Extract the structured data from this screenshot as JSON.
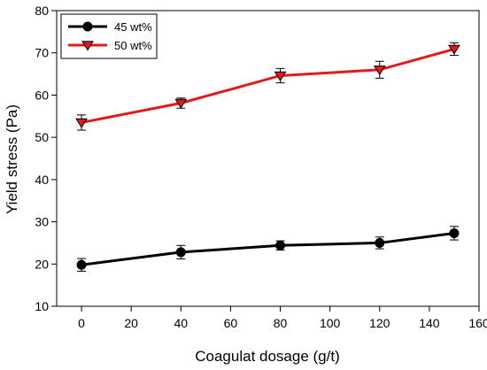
{
  "chart_data": {
    "type": "line",
    "title": "",
    "xlabel": "Coagulat dosage (g/t)",
    "ylabel": "Yield stress (Pa)",
    "xlim": [
      -10,
      160
    ],
    "ylim": [
      10,
      80
    ],
    "xticks": [
      0,
      20,
      40,
      60,
      80,
      100,
      120,
      140,
      160
    ],
    "yticks": [
      10,
      20,
      30,
      40,
      50,
      60,
      70,
      80
    ],
    "grid": false,
    "legend_position": "top-left",
    "series": [
      {
        "name": "45 wt%",
        "color": "#000000",
        "marker": "circle",
        "x": [
          0,
          40,
          80,
          120,
          150
        ],
        "y": [
          19.8,
          22.8,
          24.4,
          25.0,
          27.3
        ],
        "error": [
          1.5,
          1.6,
          1.1,
          1.4,
          1.6
        ]
      },
      {
        "name": "50 wt%",
        "color": "#e31a1c",
        "marker": "triangle-down",
        "x": [
          0,
          40,
          80,
          120,
          150
        ],
        "y": [
          53.5,
          58.1,
          64.6,
          66.0,
          70.9
        ],
        "error": [
          1.8,
          1.2,
          1.7,
          2.0,
          1.5
        ]
      }
    ]
  }
}
